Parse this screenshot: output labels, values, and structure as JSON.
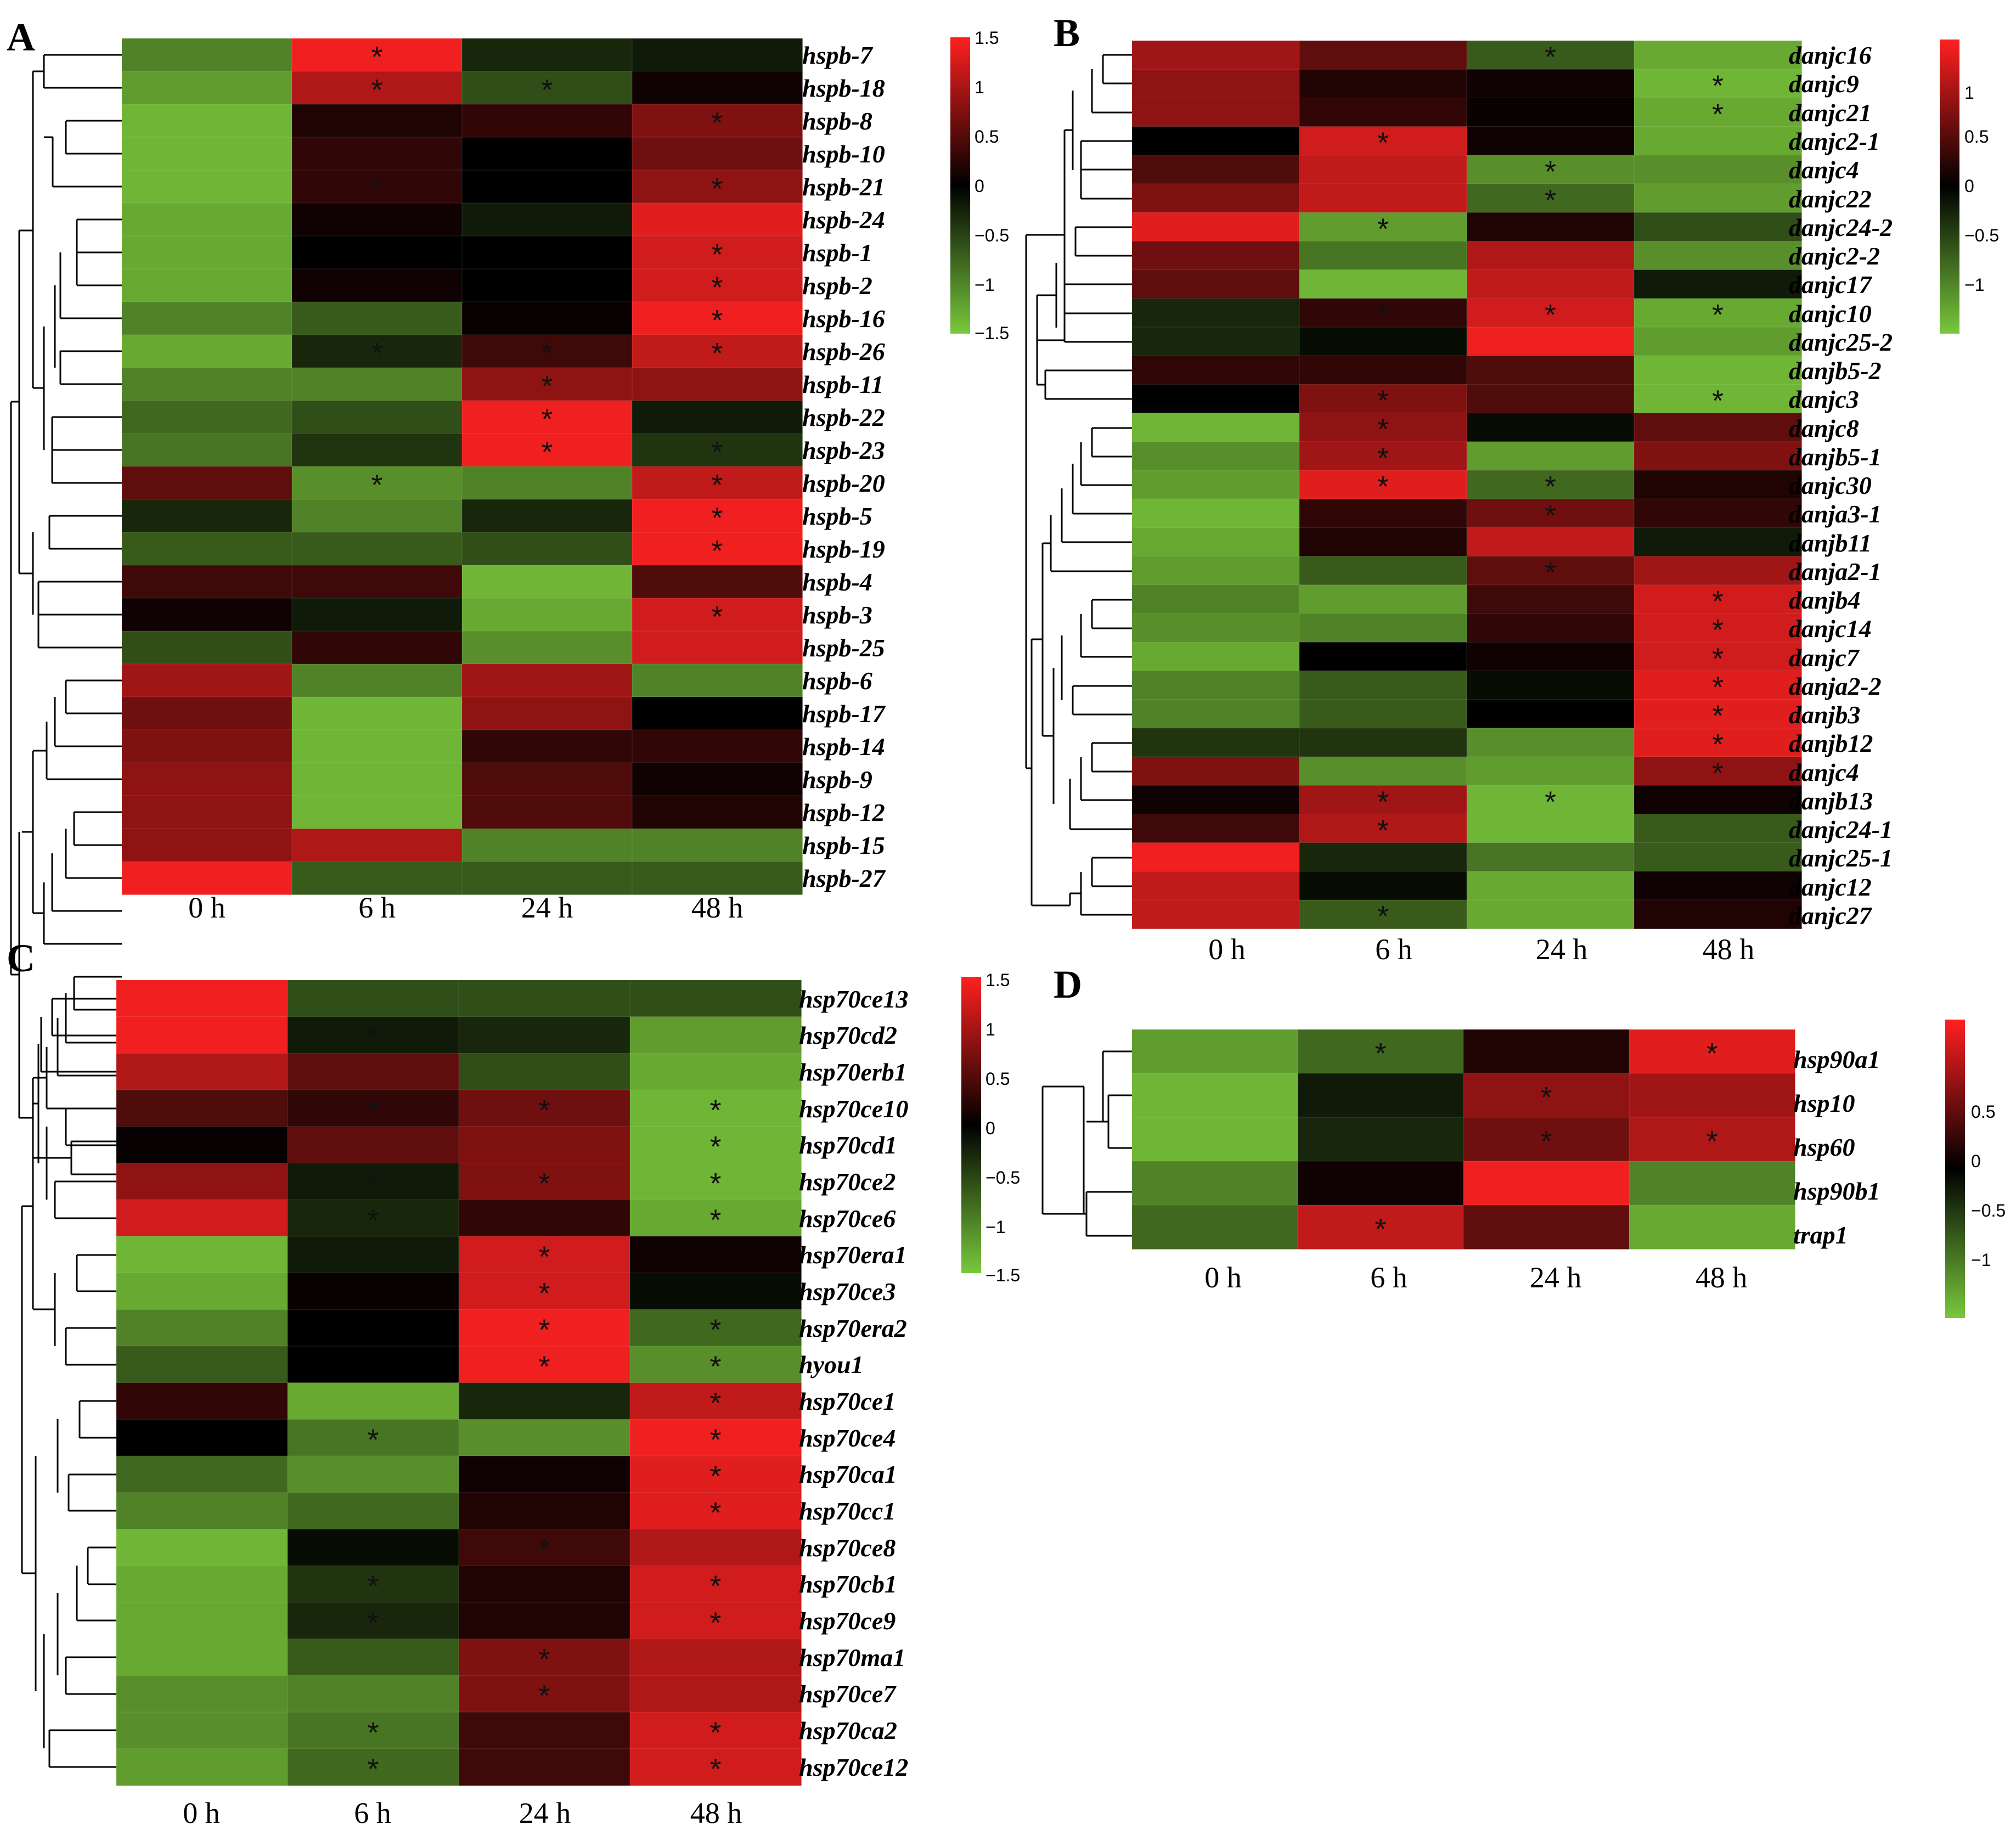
{
  "chart_data": [
    {
      "type": "heatmap",
      "panel": "A",
      "columns": [
        "0 h",
        "6 h",
        "24 h",
        "48 h"
      ],
      "colorbar_ticks": [
        "1.5",
        "1",
        "0.5",
        "0",
        "−0.5",
        "−1",
        "−1.5"
      ],
      "colorbar_range": [
        -1.5,
        1.5
      ],
      "rows": [
        "hspb-7",
        "hspb-18",
        "hspb-8",
        "hspb-10",
        "hspb-21",
        "hspb-24",
        "hspb-1",
        "hspb-2",
        "hspb-16",
        "hspb-26",
        "hspb-11",
        "hspb-22",
        "hspb-23",
        "hspb-20",
        "hspb-5",
        "hspb-19",
        "hspb-4",
        "hspb-3",
        "hspb-25",
        "hspb-6",
        "hspb-17",
        "hspb-14",
        "hspb-9",
        "hspb-12",
        "hspb-15",
        "hspb-27"
      ],
      "values": [
        [
          -1.0,
          1.5,
          -0.3,
          -0.2
        ],
        [
          -1.2,
          1.1,
          -0.6,
          0.1
        ],
        [
          -1.4,
          0.2,
          0.3,
          0.8
        ],
        [
          -1.4,
          0.3,
          0.0,
          0.7
        ],
        [
          -1.4,
          0.3,
          0.0,
          0.9
        ],
        [
          -1.3,
          0.1,
          -0.2,
          1.4
        ],
        [
          -1.3,
          0.0,
          0.0,
          1.3
        ],
        [
          -1.3,
          0.1,
          0.0,
          1.3
        ],
        [
          -1.0,
          -0.7,
          0.05,
          1.5
        ],
        [
          -1.3,
          -0.3,
          0.4,
          1.2
        ],
        [
          -1.0,
          -1.0,
          0.9,
          0.9
        ],
        [
          -0.8,
          -0.6,
          1.5,
          -0.2
        ],
        [
          -0.9,
          -0.4,
          1.5,
          -0.4
        ],
        [
          0.6,
          -1.1,
          -1.0,
          1.2
        ],
        [
          -0.3,
          -1.0,
          -0.3,
          1.5
        ],
        [
          -0.7,
          -0.7,
          -0.6,
          1.5
        ],
        [
          0.4,
          0.4,
          -1.4,
          0.5
        ],
        [
          0.1,
          -0.2,
          -1.3,
          1.3
        ],
        [
          -0.6,
          0.3,
          -1.1,
          1.3
        ],
        [
          1.0,
          -1.0,
          1.0,
          -1.0
        ],
        [
          0.7,
          -1.4,
          0.9,
          0.0
        ],
        [
          0.8,
          -1.4,
          0.3,
          0.3
        ],
        [
          0.9,
          -1.4,
          0.5,
          0.1
        ],
        [
          0.9,
          -1.4,
          0.5,
          0.2
        ],
        [
          0.9,
          1.1,
          -1.0,
          -1.0
        ],
        [
          1.5,
          -0.7,
          -0.7,
          -0.7
        ]
      ],
      "significant": [
        [
          false,
          true,
          false,
          false
        ],
        [
          false,
          true,
          true,
          false
        ],
        [
          false,
          false,
          false,
          true
        ],
        [
          false,
          false,
          false,
          false
        ],
        [
          false,
          true,
          false,
          true
        ],
        [
          false,
          false,
          false,
          false
        ],
        [
          false,
          false,
          false,
          true
        ],
        [
          false,
          false,
          false,
          true
        ],
        [
          false,
          false,
          false,
          true
        ],
        [
          false,
          true,
          true,
          true
        ],
        [
          false,
          false,
          true,
          false
        ],
        [
          false,
          false,
          true,
          false
        ],
        [
          false,
          false,
          true,
          true
        ],
        [
          false,
          true,
          false,
          true
        ],
        [
          false,
          false,
          false,
          true
        ],
        [
          false,
          false,
          false,
          true
        ],
        [
          false,
          false,
          false,
          false
        ],
        [
          false,
          false,
          false,
          true
        ],
        [
          false,
          false,
          false,
          false
        ],
        [
          false,
          false,
          false,
          false
        ],
        [
          false,
          false,
          false,
          false
        ],
        [
          false,
          false,
          false,
          false
        ],
        [
          false,
          false,
          false,
          false
        ],
        [
          false,
          false,
          false,
          false
        ],
        [
          false,
          false,
          false,
          false
        ],
        [
          false,
          false,
          false,
          false
        ]
      ]
    },
    {
      "type": "heatmap",
      "panel": "B",
      "columns": [
        "0 h",
        "6 h",
        "24 h",
        "48 h"
      ],
      "colorbar_ticks": [
        "1",
        "0.5",
        "0",
        "−0.5",
        "−1"
      ],
      "colorbar_range": [
        -1.5,
        1.5
      ],
      "rows": [
        "danjc16",
        "danjc9",
        "danjc21",
        "danjc2-1",
        "danjc4",
        "danjc22",
        "danjc24-2",
        "danjc2-2",
        "danjc17",
        "danjc10",
        "danjc25-2",
        "danjb5-2",
        "danjc3",
        "danjc8",
        "danjb5-1",
        "danjc30",
        "danja3-1",
        "danjb11",
        "danja2-1",
        "danjb4",
        "danjc14",
        "danjc7",
        "danja2-2",
        "danjb3",
        "danjb12",
        "danjc4",
        "danjb13",
        "danjc24-1",
        "danjc25-1",
        "danjc12",
        "danjc27"
      ],
      "values": [
        [
          1.0,
          0.6,
          -0.7,
          -1.3
        ],
        [
          0.9,
          0.2,
          0.1,
          -1.4
        ],
        [
          0.9,
          0.3,
          0.05,
          -1.3
        ],
        [
          0.0,
          1.3,
          0.1,
          -1.3
        ],
        [
          0.5,
          1.2,
          -1.1,
          -1.1
        ],
        [
          0.8,
          1.2,
          -0.8,
          -1.2
        ],
        [
          1.4,
          -1.2,
          0.2,
          -0.6
        ],
        [
          0.7,
          -0.9,
          1.1,
          -1.1
        ],
        [
          0.6,
          -1.4,
          1.2,
          -0.2
        ],
        [
          -0.3,
          0.3,
          1.3,
          -1.3
        ],
        [
          -0.3,
          -0.1,
          1.5,
          -1.2
        ],
        [
          0.3,
          0.3,
          0.5,
          -1.4
        ],
        [
          0.0,
          0.8,
          0.5,
          -1.4
        ],
        [
          -1.4,
          0.9,
          -0.1,
          0.6
        ],
        [
          -1.1,
          1.0,
          -1.2,
          0.8
        ],
        [
          -1.2,
          1.4,
          -0.8,
          0.2
        ],
        [
          -1.4,
          0.3,
          0.7,
          0.3
        ],
        [
          -1.3,
          0.2,
          1.2,
          -0.2
        ],
        [
          -1.2,
          -0.7,
          0.6,
          1.0
        ],
        [
          -1.0,
          -1.2,
          0.4,
          1.3
        ],
        [
          -1.1,
          -1.0,
          0.3,
          1.3
        ],
        [
          -1.3,
          0.0,
          0.1,
          1.3
        ],
        [
          -1.0,
          -0.7,
          -0.1,
          1.4
        ],
        [
          -1.0,
          -0.7,
          0.0,
          1.4
        ],
        [
          -0.4,
          -0.4,
          -1.1,
          1.4
        ],
        [
          0.8,
          -1.1,
          -1.2,
          0.9
        ],
        [
          0.1,
          1.0,
          -1.4,
          0.1
        ],
        [
          0.4,
          1.1,
          -1.4,
          -0.7
        ],
        [
          1.5,
          -0.3,
          -0.9,
          -0.7
        ],
        [
          1.2,
          -0.1,
          -1.3,
          0.1
        ],
        [
          1.2,
          -0.7,
          -1.3,
          0.2
        ]
      ],
      "significant": [
        [
          false,
          false,
          true,
          false
        ],
        [
          false,
          false,
          false,
          true
        ],
        [
          false,
          false,
          false,
          true
        ],
        [
          false,
          true,
          false,
          false
        ],
        [
          false,
          false,
          true,
          false
        ],
        [
          false,
          false,
          true,
          false
        ],
        [
          false,
          true,
          false,
          false
        ],
        [
          false,
          false,
          false,
          false
        ],
        [
          false,
          false,
          false,
          false
        ],
        [
          false,
          true,
          true,
          true
        ],
        [
          false,
          false,
          false,
          false
        ],
        [
          false,
          false,
          false,
          false
        ],
        [
          false,
          true,
          false,
          true
        ],
        [
          false,
          true,
          false,
          false
        ],
        [
          false,
          true,
          false,
          false
        ],
        [
          false,
          true,
          true,
          false
        ],
        [
          false,
          false,
          true,
          false
        ],
        [
          false,
          false,
          false,
          false
        ],
        [
          false,
          false,
          true,
          false
        ],
        [
          false,
          false,
          false,
          true
        ],
        [
          false,
          false,
          false,
          true
        ],
        [
          false,
          false,
          false,
          true
        ],
        [
          false,
          false,
          false,
          true
        ],
        [
          false,
          false,
          false,
          true
        ],
        [
          false,
          false,
          false,
          true
        ],
        [
          false,
          false,
          false,
          true
        ],
        [
          false,
          true,
          true,
          false
        ],
        [
          false,
          true,
          false,
          false
        ],
        [
          false,
          false,
          false,
          false
        ],
        [
          false,
          false,
          false,
          false
        ],
        [
          false,
          true,
          false,
          false
        ]
      ]
    },
    {
      "type": "heatmap",
      "panel": "C",
      "columns": [
        "0 h",
        "6 h",
        "24 h",
        "48 h"
      ],
      "colorbar_ticks": [
        "1.5",
        "1",
        "0.5",
        "0",
        "−0.5",
        "−1",
        "−1.5"
      ],
      "colorbar_range": [
        -1.5,
        1.5
      ],
      "rows": [
        "hsp70ce13",
        "hsp70cd2",
        "hsp70erb1",
        "hsp70ce10",
        "hsp70cd1",
        "hsp70ce2",
        "hsp70ce6",
        "hsp70era1",
        "hsp70ce3",
        "hsp70era2",
        "hyou1",
        "hsp70ce1",
        "hsp70ce4",
        "hsp70ca1",
        "hsp70cc1",
        "hsp70ce8",
        "hsp70cb1",
        "hsp70ce9",
        "hsp70ma1",
        "hsp70ce7",
        "hsp70ca2",
        "hsp70ce12"
      ],
      "values": [
        [
          1.5,
          -0.6,
          -0.6,
          -0.6
        ],
        [
          1.5,
          -0.2,
          -0.3,
          -1.2
        ],
        [
          1.1,
          0.6,
          -0.6,
          -1.3
        ],
        [
          0.5,
          0.3,
          0.7,
          -1.4
        ],
        [
          0.05,
          0.6,
          0.8,
          -1.4
        ],
        [
          0.9,
          -0.2,
          0.8,
          -1.4
        ],
        [
          1.3,
          -0.3,
          0.3,
          -1.3
        ],
        [
          -1.4,
          -0.2,
          1.3,
          0.1
        ],
        [
          -1.3,
          0.05,
          1.3,
          -0.1
        ],
        [
          -1.0,
          0.0,
          1.5,
          -0.8
        ],
        [
          -0.7,
          0.0,
          1.5,
          -1.1
        ],
        [
          0.3,
          -1.3,
          -0.3,
          1.2
        ],
        [
          0.0,
          -0.9,
          -1.1,
          1.5
        ],
        [
          -0.8,
          -1.1,
          0.1,
          1.4
        ],
        [
          -1.0,
          -0.8,
          0.2,
          1.4
        ],
        [
          -1.4,
          -0.1,
          0.4,
          1.1
        ],
        [
          -1.3,
          -0.4,
          0.2,
          1.3
        ],
        [
          -1.3,
          -0.3,
          0.2,
          1.3
        ],
        [
          -1.3,
          -0.7,
          0.8,
          1.1
        ],
        [
          -1.1,
          -1.0,
          0.8,
          1.1
        ],
        [
          -1.1,
          -0.9,
          0.4,
          1.3
        ],
        [
          -1.2,
          -0.8,
          0.4,
          1.3
        ]
      ],
      "significant": [
        [
          false,
          false,
          false,
          false
        ],
        [
          false,
          true,
          false,
          false
        ],
        [
          false,
          false,
          false,
          false
        ],
        [
          false,
          true,
          true,
          true
        ],
        [
          false,
          false,
          false,
          true
        ],
        [
          false,
          true,
          true,
          true
        ],
        [
          false,
          true,
          false,
          true
        ],
        [
          false,
          false,
          true,
          false
        ],
        [
          false,
          false,
          true,
          false
        ],
        [
          false,
          false,
          true,
          true
        ],
        [
          false,
          false,
          true,
          true
        ],
        [
          false,
          false,
          false,
          true
        ],
        [
          false,
          true,
          false,
          true
        ],
        [
          false,
          false,
          false,
          true
        ],
        [
          false,
          false,
          false,
          true
        ],
        [
          false,
          false,
          true,
          false
        ],
        [
          false,
          true,
          false,
          true
        ],
        [
          false,
          true,
          false,
          true
        ],
        [
          false,
          false,
          true,
          false
        ],
        [
          false,
          false,
          true,
          false
        ],
        [
          false,
          true,
          false,
          true
        ],
        [
          false,
          true,
          false,
          true
        ]
      ]
    },
    {
      "type": "heatmap",
      "panel": "D",
      "columns": [
        "0 h",
        "6 h",
        "24 h",
        "48 h"
      ],
      "colorbar_ticks": [
        "0.5",
        "0",
        "−0.5",
        "−1"
      ],
      "colorbar_range": [
        -1.5,
        1.5
      ],
      "rows": [
        "hsp90a1",
        "hsp10",
        "hsp60",
        "hsp90b1",
        "trap1"
      ],
      "values": [
        [
          -1.2,
          -0.8,
          0.2,
          1.4
        ],
        [
          -1.4,
          -0.2,
          0.9,
          1.0
        ],
        [
          -1.4,
          -0.3,
          0.7,
          1.1
        ],
        [
          -1.0,
          0.1,
          1.5,
          -1.0
        ],
        [
          -0.8,
          1.2,
          0.6,
          -1.3
        ]
      ],
      "significant": [
        [
          false,
          true,
          false,
          true
        ],
        [
          false,
          false,
          true,
          false
        ],
        [
          false,
          false,
          true,
          true
        ],
        [
          false,
          false,
          false,
          false
        ],
        [
          false,
          true,
          false,
          false
        ]
      ]
    }
  ]
}
